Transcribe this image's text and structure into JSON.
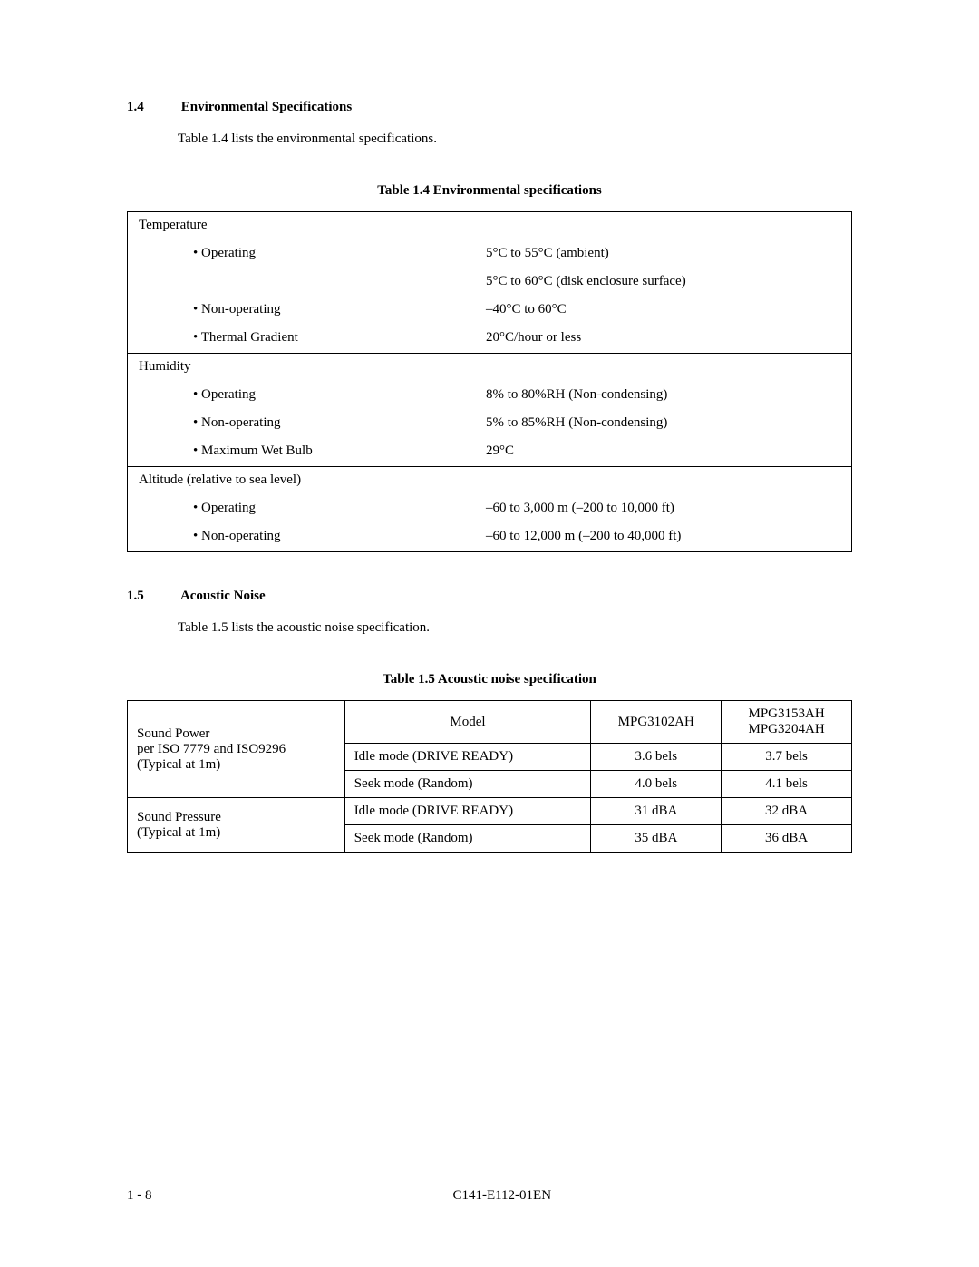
{
  "section14": {
    "num": "1.4",
    "title": "Environmental Specifications",
    "intro": "Table 1.4 lists the environmental specifications.",
    "caption": "Table 1.4    Environmental specifications"
  },
  "envTable": {
    "temp": {
      "heading": "Temperature",
      "operating_label": "Operating",
      "operating_val1": "5°C to 55°C (ambient)",
      "operating_val2": "5°C to 60°C (disk enclosure surface)",
      "nonop_label": "Non-operating",
      "nonop_val": "–40°C to 60°C",
      "grad_label": "Thermal Gradient",
      "grad_val": "20°C/hour or less"
    },
    "humidity": {
      "heading": "Humidity",
      "operating_label": "Operating",
      "operating_val": "8% to 80%RH (Non-condensing)",
      "nonop_label": "Non-operating",
      "nonop_val": "5% to 85%RH (Non-condensing)",
      "wet_label": "Maximum Wet Bulb",
      "wet_val": "29°C"
    },
    "altitude": {
      "heading": "Altitude (relative to sea level)",
      "operating_label": "Operating",
      "operating_val": "–60 to 3,000 m (–200 to 10,000 ft)",
      "nonop_label": "Non-operating",
      "nonop_val": "–60 to 12,000 m  (–200 to 40,000 ft)"
    }
  },
  "section15": {
    "num": "1.5",
    "title": "Acoustic Noise",
    "intro": "Table 1.5 lists the acoustic noise specification.",
    "caption": "Table 1.5    Acoustic noise specification"
  },
  "acoustic": {
    "header": {
      "model": "Model",
      "col2": "MPG3102AH",
      "col3a": "MPG3153AH",
      "col3b": "MPG3204AH"
    },
    "soundPower": {
      "label1": "Sound Power",
      "label2": "per ISO 7779 and ISO9296",
      "label3": "(Typical at 1m)",
      "idle_label": "Idle mode (DRIVE READY)",
      "idle_c2": "3.6 bels",
      "idle_c3": "3.7 bels",
      "seek_label": "Seek mode (Random)",
      "seek_c2": "4.0 bels",
      "seek_c3": "4.1 bels"
    },
    "soundPressure": {
      "label1": "Sound Pressure",
      "label2": "(Typical at 1m)",
      "idle_label": "Idle mode (DRIVE READY)",
      "idle_c2": "31 dBA",
      "idle_c3": "32 dBA",
      "seek_label": "Seek mode (Random)",
      "seek_c2": "35 dBA",
      "seek_c3": "36 dBA"
    }
  },
  "footer": {
    "page": "1 - 8",
    "docid": "C141-E112-01EN"
  }
}
